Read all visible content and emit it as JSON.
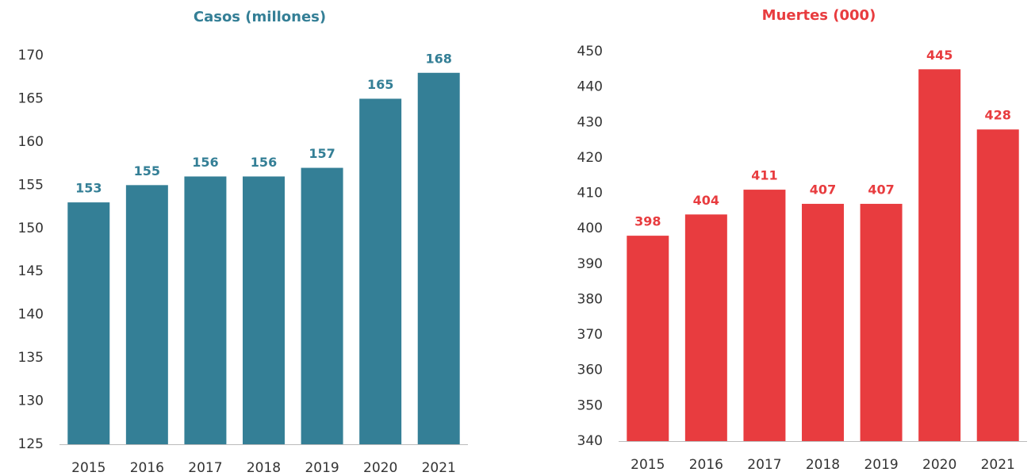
{
  "chart_data": [
    {
      "type": "bar",
      "title": "Casos (millones)",
      "categories": [
        "2015",
        "2016",
        "2017",
        "2018",
        "2019",
        "2020",
        "2021"
      ],
      "values": [
        153,
        155,
        156,
        156,
        157,
        165,
        168
      ],
      "color": "#347f96",
      "ylim": [
        125,
        170
      ],
      "yticks": [
        125,
        130,
        135,
        140,
        145,
        150,
        155,
        160,
        165,
        170
      ],
      "grid": false
    },
    {
      "type": "bar",
      "title": "Muertes (000)",
      "categories": [
        "2015",
        "2016",
        "2017",
        "2018",
        "2019",
        "2020",
        "2021"
      ],
      "values": [
        398,
        404,
        411,
        407,
        407,
        445,
        428
      ],
      "color": "#e83c3f",
      "ylim": [
        340,
        450
      ],
      "yticks": [
        340,
        350,
        360,
        370,
        380,
        390,
        400,
        410,
        420,
        430,
        440,
        450
      ],
      "grid": false
    }
  ]
}
